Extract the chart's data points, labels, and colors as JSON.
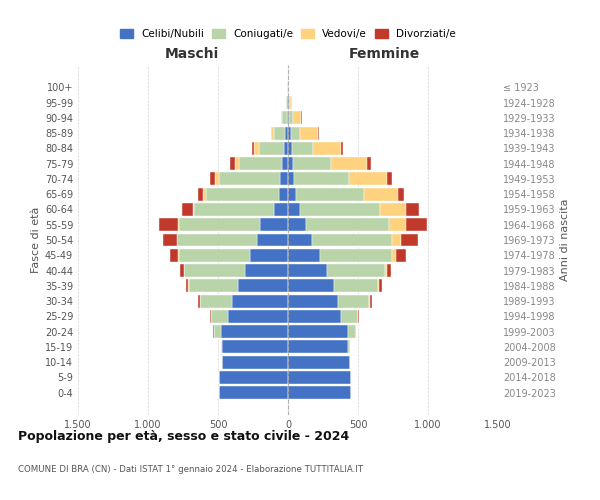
{
  "age_groups": [
    "100+",
    "95-99",
    "90-94",
    "85-89",
    "80-84",
    "75-79",
    "70-74",
    "65-69",
    "60-64",
    "55-59",
    "50-54",
    "45-49",
    "40-44",
    "35-39",
    "30-34",
    "25-29",
    "20-24",
    "15-19",
    "10-14",
    "5-9",
    "0-4"
  ],
  "birth_years": [
    "≤ 1923",
    "1924-1928",
    "1929-1933",
    "1934-1938",
    "1939-1943",
    "1944-1948",
    "1949-1953",
    "1954-1958",
    "1959-1963",
    "1964-1968",
    "1969-1973",
    "1974-1978",
    "1979-1983",
    "1984-1988",
    "1989-1993",
    "1994-1998",
    "1999-2003",
    "2004-2008",
    "2009-2013",
    "2014-2018",
    "2019-2023"
  ],
  "maschi": {
    "celibi": [
      2,
      5,
      10,
      20,
      30,
      40,
      55,
      65,
      100,
      200,
      220,
      270,
      310,
      360,
      400,
      430,
      480,
      470,
      470,
      490,
      490
    ],
    "coniugati": [
      2,
      8,
      30,
      80,
      180,
      310,
      440,
      520,
      570,
      580,
      570,
      510,
      430,
      350,
      230,
      120,
      50,
      10,
      5,
      2,
      2
    ],
    "vedovi": [
      1,
      3,
      10,
      20,
      30,
      30,
      25,
      20,
      10,
      8,
      5,
      3,
      2,
      1,
      1,
      1,
      1,
      0,
      0,
      0,
      0
    ],
    "divorziati": [
      0,
      0,
      2,
      5,
      20,
      35,
      40,
      40,
      80,
      130,
      100,
      60,
      30,
      20,
      15,
      5,
      2,
      1,
      0,
      0,
      0
    ]
  },
  "femmine": {
    "nubili": [
      2,
      5,
      10,
      20,
      30,
      35,
      45,
      55,
      85,
      130,
      170,
      230,
      280,
      330,
      360,
      380,
      430,
      430,
      440,
      450,
      450
    ],
    "coniugate": [
      2,
      8,
      25,
      65,
      150,
      270,
      390,
      490,
      570,
      590,
      570,
      510,
      410,
      310,
      220,
      120,
      55,
      15,
      5,
      2,
      2
    ],
    "vedove": [
      2,
      15,
      60,
      130,
      200,
      260,
      270,
      240,
      190,
      120,
      70,
      30,
      15,
      8,
      5,
      2,
      1,
      0,
      0,
      0,
      0
    ],
    "divorziate": [
      0,
      0,
      2,
      5,
      15,
      30,
      40,
      45,
      90,
      150,
      120,
      70,
      30,
      20,
      15,
      8,
      2,
      1,
      0,
      0,
      0
    ]
  },
  "colors": {
    "celibi": "#4472C4",
    "coniugati": "#B8D4A8",
    "vedovi": "#FFD280",
    "divorziati": "#C0392B"
  },
  "title": "Popolazione per età, sesso e stato civile - 2024",
  "subtitle": "COMUNE DI BRA (CN) - Dati ISTAT 1° gennaio 2024 - Elaborazione TUTTITALIA.IT",
  "xlabel_left": "Maschi",
  "xlabel_right": "Femmine",
  "ylabel_left": "Fasce di età",
  "ylabel_right": "Anni di nascita",
  "xlim": 1500,
  "bg_color": "#ffffff",
  "grid_color": "#cccccc",
  "legend_labels": [
    "Celibi/Nubili",
    "Coniugati/e",
    "Vedovi/e",
    "Divorziati/e"
  ]
}
